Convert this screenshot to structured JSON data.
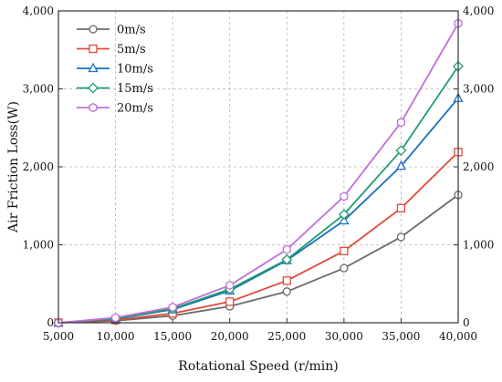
{
  "chart_data": {
    "type": "line",
    "title": "",
    "xlabel": "Rotational Speed (r/min)",
    "ylabel": "Air Friction Loss(W)",
    "xlim": [
      5000,
      40000
    ],
    "ylim": [
      0,
      4000
    ],
    "x": [
      5000,
      10000,
      15000,
      20000,
      25000,
      30000,
      35000,
      40000
    ],
    "x_tick_labels": [
      "5,000",
      "10,000",
      "15,000",
      "20,000",
      "25,000",
      "30,000",
      "35,000",
      "40,000"
    ],
    "y_ticks": [
      0,
      1000,
      2000,
      3000,
      4000
    ],
    "y_tick_labels": [
      "0",
      "1,000",
      "2,000",
      "3,000",
      "4,000"
    ],
    "grid": true,
    "legend_position": "top-left",
    "series": [
      {
        "name": "0m/s",
        "color": "#6b6b6b",
        "marker": "circle",
        "values": [
          0,
          25,
          90,
          210,
          400,
          700,
          1100,
          1640
        ]
      },
      {
        "name": "5m/s",
        "color": "#e04a3a",
        "marker": "square",
        "values": [
          0,
          35,
          120,
          270,
          540,
          920,
          1470,
          2190
        ]
      },
      {
        "name": "10m/s",
        "color": "#1a6fc0",
        "marker": "triangle",
        "values": [
          0,
          50,
          170,
          410,
          800,
          1310,
          2010,
          2880
        ]
      },
      {
        "name": "15m/s",
        "color": "#1e9e6e",
        "marker": "diamond",
        "values": [
          0,
          55,
          180,
          430,
          810,
          1390,
          2210,
          3290
        ]
      },
      {
        "name": "20m/s",
        "color": "#bf6fd8",
        "marker": "hexagon",
        "values": [
          0,
          65,
          200,
          480,
          940,
          1620,
          2570,
          3840
        ]
      }
    ]
  }
}
